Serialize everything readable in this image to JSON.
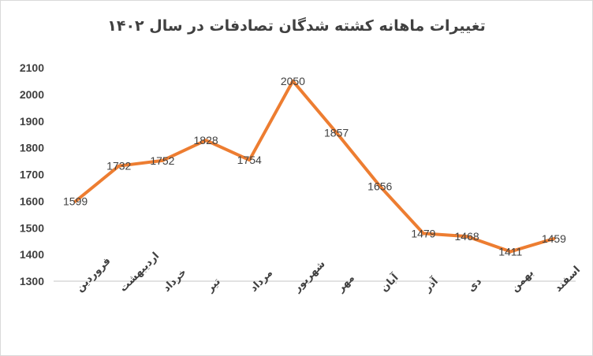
{
  "chart_data": {
    "type": "line",
    "title": "تغییرات ماهانه کشته شدگان تصادفات در سال ۱۴۰۲",
    "categories": [
      "فروردین",
      "اردیبهشت",
      "خرداد",
      "تیر",
      "مرداد",
      "شهریور",
      "مهر",
      "آبان",
      "آذر",
      "دی",
      "بهمن",
      "اسفند"
    ],
    "series": [
      {
        "values": [
          1599,
          1732,
          1752,
          1828,
          1754,
          2050,
          1857,
          1656,
          1479,
          1468,
          1411,
          1459
        ]
      }
    ],
    "ylim": [
      1300,
      2100
    ],
    "yticks": [
      1300,
      1400,
      1500,
      1600,
      1700,
      1800,
      1900,
      2000,
      2100
    ],
    "grid": false,
    "legend": "none",
    "colors": {
      "line": "#ed7d31",
      "axis": "#d9d9d9",
      "text": "#404040"
    }
  }
}
